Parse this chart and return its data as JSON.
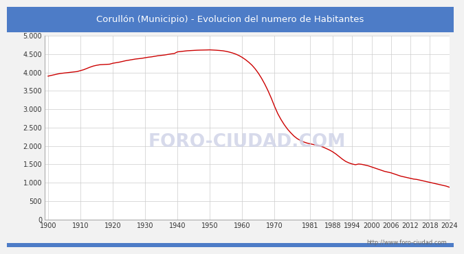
{
  "title": "Corullón (Municipio) - Evolucion del numero de Habitantes",
  "title_bg_color": "#4d7cc7",
  "title_text_color": "white",
  "line_color": "#CC0000",
  "bg_color": "#f2f2f2",
  "plot_bg_color": "white",
  "grid_color": "#cccccc",
  "watermark": "FORO-CIUDAD.COM",
  "url": "http://www.foro-ciudad.com",
  "years_full": [
    1900,
    1901,
    1902,
    1903,
    1904,
    1905,
    1906,
    1907,
    1908,
    1909,
    1910,
    1911,
    1912,
    1913,
    1914,
    1915,
    1916,
    1917,
    1918,
    1919,
    1920,
    1921,
    1922,
    1923,
    1924,
    1925,
    1926,
    1927,
    1928,
    1929,
    1930,
    1931,
    1932,
    1933,
    1934,
    1935,
    1936,
    1937,
    1938,
    1939,
    1940,
    1941,
    1942,
    1943,
    1944,
    1945,
    1946,
    1947,
    1948,
    1949,
    1950,
    1951,
    1952,
    1953,
    1954,
    1955,
    1956,
    1957,
    1958,
    1959,
    1960,
    1961,
    1962,
    1963,
    1964,
    1965,
    1966,
    1967,
    1968,
    1969,
    1970,
    1971,
    1972,
    1973,
    1974,
    1975,
    1976,
    1977,
    1978,
    1979,
    1980,
    1981,
    1982,
    1983,
    1984,
    1985,
    1986,
    1987,
    1988,
    1989,
    1990,
    1991,
    1992,
    1993,
    1994,
    1995,
    1996,
    1997,
    1998,
    1999,
    2000,
    2001,
    2002,
    2003,
    2004,
    2005,
    2006,
    2007,
    2008,
    2009,
    2010,
    2011,
    2012,
    2013,
    2014,
    2015,
    2016,
    2017,
    2018,
    2019,
    2020,
    2021,
    2022,
    2023,
    2024
  ],
  "population_full": [
    3900,
    3920,
    3940,
    3960,
    3975,
    3985,
    3995,
    4005,
    4015,
    4025,
    4050,
    4075,
    4110,
    4145,
    4175,
    4195,
    4210,
    4215,
    4220,
    4225,
    4250,
    4265,
    4280,
    4300,
    4320,
    4335,
    4350,
    4365,
    4375,
    4385,
    4400,
    4415,
    4425,
    4440,
    4455,
    4465,
    4475,
    4490,
    4505,
    4515,
    4560,
    4570,
    4580,
    4590,
    4595,
    4600,
    4605,
    4608,
    4610,
    4612,
    4615,
    4610,
    4605,
    4598,
    4590,
    4575,
    4555,
    4530,
    4500,
    4460,
    4410,
    4350,
    4280,
    4200,
    4100,
    3980,
    3840,
    3680,
    3500,
    3300,
    3080,
    2880,
    2720,
    2580,
    2460,
    2360,
    2270,
    2200,
    2150,
    2110,
    2080,
    2060,
    2040,
    2020,
    2000,
    1970,
    1930,
    1890,
    1840,
    1780,
    1710,
    1640,
    1580,
    1540,
    1510,
    1490,
    1510,
    1500,
    1480,
    1460,
    1430,
    1400,
    1370,
    1340,
    1310,
    1290,
    1270,
    1240,
    1210,
    1180,
    1160,
    1140,
    1120,
    1100,
    1090,
    1070,
    1050,
    1030,
    1010,
    990,
    970,
    950,
    930,
    910,
    880
  ],
  "yticks": [
    0,
    500,
    1000,
    1500,
    2000,
    2500,
    3000,
    3500,
    4000,
    4500,
    5000
  ],
  "xtick_positions": [
    1900,
    1910,
    1920,
    1930,
    1940,
    1950,
    1960,
    1970,
    1981,
    1988,
    1994,
    2000,
    2006,
    2012,
    2018,
    2024
  ],
  "xtick_labels": [
    "1900",
    "1910",
    "1920",
    "1930",
    "1940",
    "1950",
    "1960",
    "1970",
    "1981",
    "1988",
    "1994",
    "2000",
    "2006",
    "2012",
    "2018",
    "2024"
  ],
  "xlim": [
    1899,
    2024
  ],
  "ylim": [
    0,
    5000
  ]
}
